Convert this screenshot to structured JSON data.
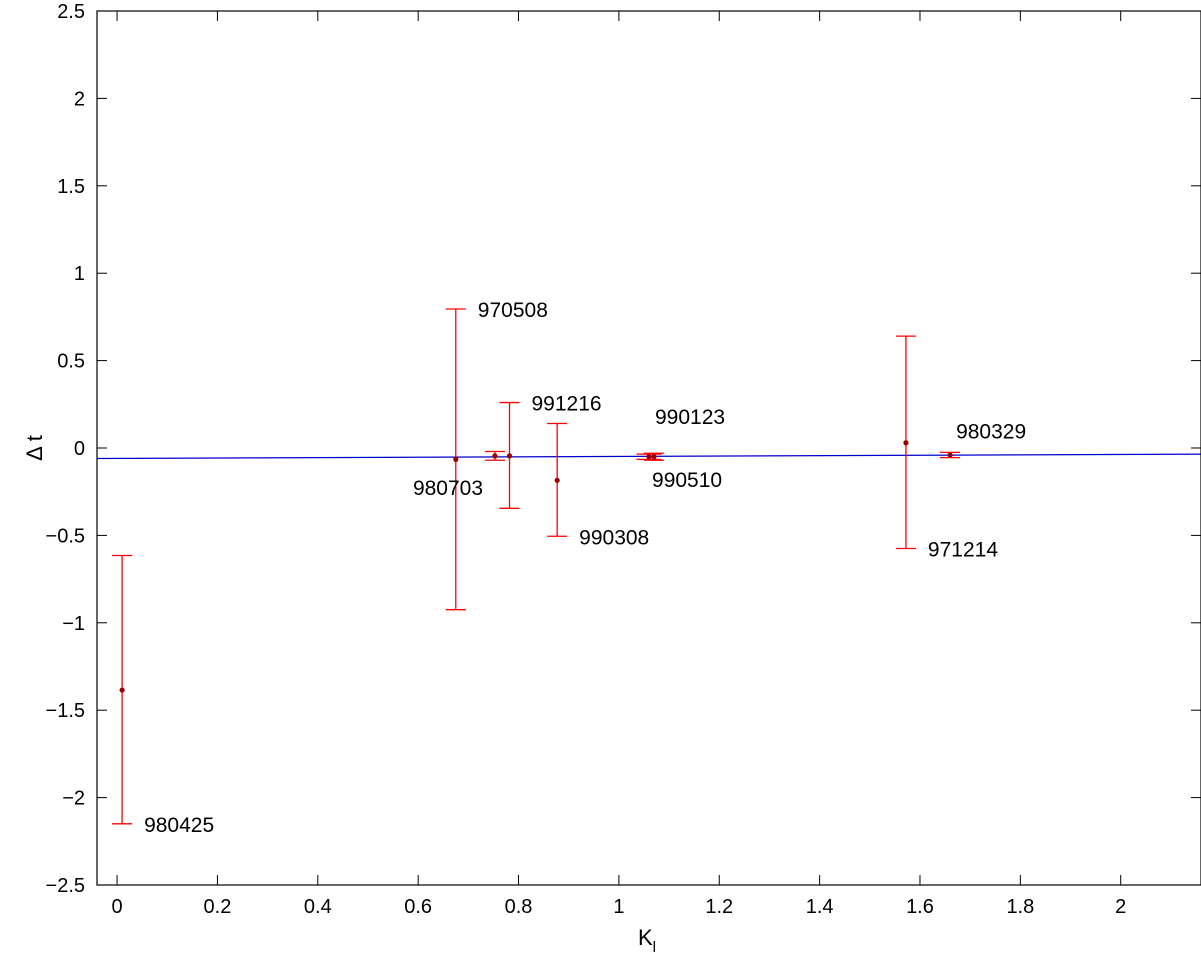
{
  "chart_data": {
    "type": "scatter",
    "title": "",
    "xlabel": "K",
    "xlabel_sub": "l",
    "ylabel": "Δ t",
    "xlim": [
      -0.04,
      2.16
    ],
    "ylim": [
      -2.5,
      2.5
    ],
    "xticks": [
      0,
      0.2,
      0.4,
      0.6,
      0.8,
      1,
      1.2,
      1.4,
      1.6,
      1.8,
      2
    ],
    "xtick_labels": [
      "0",
      "0.2",
      "0.4",
      "0.6",
      "0.8",
      "1",
      "1.2",
      "1.4",
      "1.6",
      "1.8",
      "2"
    ],
    "yticks": [
      -2.5,
      -2,
      -1.5,
      -1,
      -0.5,
      0,
      0.5,
      1,
      1.5,
      2,
      2.5
    ],
    "ytick_labels": [
      "−2.5",
      "−2",
      "−1.5",
      "−1",
      "−0.5",
      "0",
      "0.5",
      "1",
      "1.5",
      "2",
      "2.5"
    ],
    "grid": false,
    "colors": {
      "errorbar": "#ff0000",
      "marker": "#990000",
      "fit": "#0000cc",
      "axis": "#000000"
    },
    "points": [
      {
        "label": "980425",
        "x": 0.01,
        "y": -1.385,
        "ylow": -2.15,
        "yhigh": -0.615,
        "capw": 0.04,
        "label_pos": "lower-right"
      },
      {
        "label": "970508",
        "x": 0.675,
        "y": -0.065,
        "ylow": -0.925,
        "yhigh": 0.795,
        "capw": 0.04,
        "label_pos": "upper-right"
      },
      {
        "label": "980703",
        "x": 0.753,
        "y": -0.045,
        "ylow": -0.07,
        "yhigh": -0.02,
        "capw": 0.04,
        "label_pos": "lower-left"
      },
      {
        "label": "991216",
        "x": 0.782,
        "y": -0.045,
        "ylow": -0.345,
        "yhigh": 0.26,
        "capw": 0.04,
        "label_pos": "upper-right"
      },
      {
        "label": "990308",
        "x": 0.877,
        "y": -0.185,
        "ylow": -0.505,
        "yhigh": 0.14,
        "capw": 0.04,
        "label_pos": "lower-right"
      },
      {
        "label": "990123",
        "x": 1.06,
        "y": -0.05,
        "ylow": -0.065,
        "yhigh": -0.035,
        "capw": 0.05,
        "label_pos": "upper-right"
      },
      {
        "label": "990510",
        "x": 1.07,
        "y": -0.05,
        "ylow": -0.07,
        "yhigh": -0.03,
        "capw": 0.04,
        "label_pos": "lower-right"
      },
      {
        "label": "971214",
        "x": 1.572,
        "y": 0.03,
        "ylow": -0.575,
        "yhigh": 0.64,
        "capw": 0.04,
        "label_pos": "lower-right"
      },
      {
        "label": "980329",
        "x": 1.66,
        "y": -0.04,
        "ylow": -0.055,
        "yhigh": -0.025,
        "capw": 0.04,
        "label_pos": "upper-right"
      }
    ],
    "fit_line": {
      "x": [
        -0.04,
        2.16
      ],
      "y": [
        -0.06,
        -0.035
      ]
    }
  }
}
